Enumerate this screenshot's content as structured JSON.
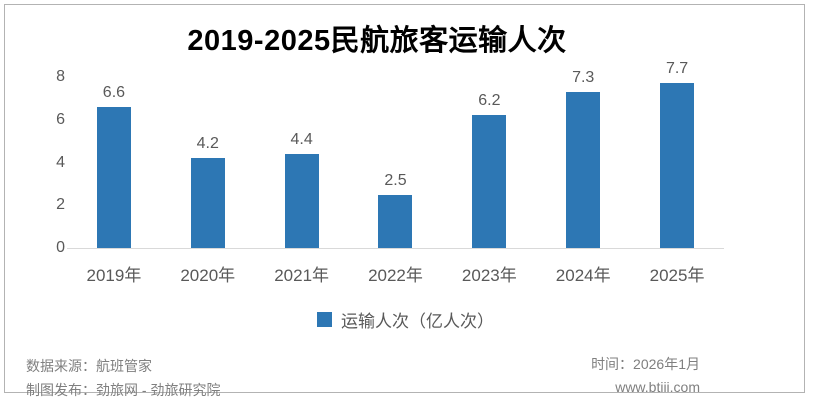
{
  "chart_data": {
    "type": "bar",
    "title": "2019-2025民航旅客运输人次",
    "categories": [
      "2019年",
      "2020年",
      "2021年",
      "2022年",
      "2023年",
      "2024年",
      "2025年"
    ],
    "values": [
      6.6,
      4.2,
      4.4,
      2.5,
      6.2,
      7.3,
      7.7
    ],
    "value_labels": [
      "6.6",
      "4.2",
      "4.4",
      "2.5",
      "6.2",
      "7.3",
      "7.7"
    ],
    "ylim": [
      0,
      8
    ],
    "y_ticks": [
      0,
      2,
      4,
      6,
      8
    ],
    "grid": false,
    "xlabel": "",
    "ylabel": "",
    "legend": "运输人次（亿人次）",
    "legend_position": "bottom",
    "colors": {
      "bar": "#2d77b4",
      "axis_line": "#d9d9d9",
      "labels": "#595959",
      "title": "#000000",
      "frame_border": "#b3b3b3",
      "footer_text": "#7f7f7f"
    }
  },
  "footer": {
    "source": "数据来源：航班管家",
    "publisher": "制图发布：劲旅网 - 劲旅研究院",
    "time": "时间：2026年1月",
    "website": "www.btiii.com"
  }
}
